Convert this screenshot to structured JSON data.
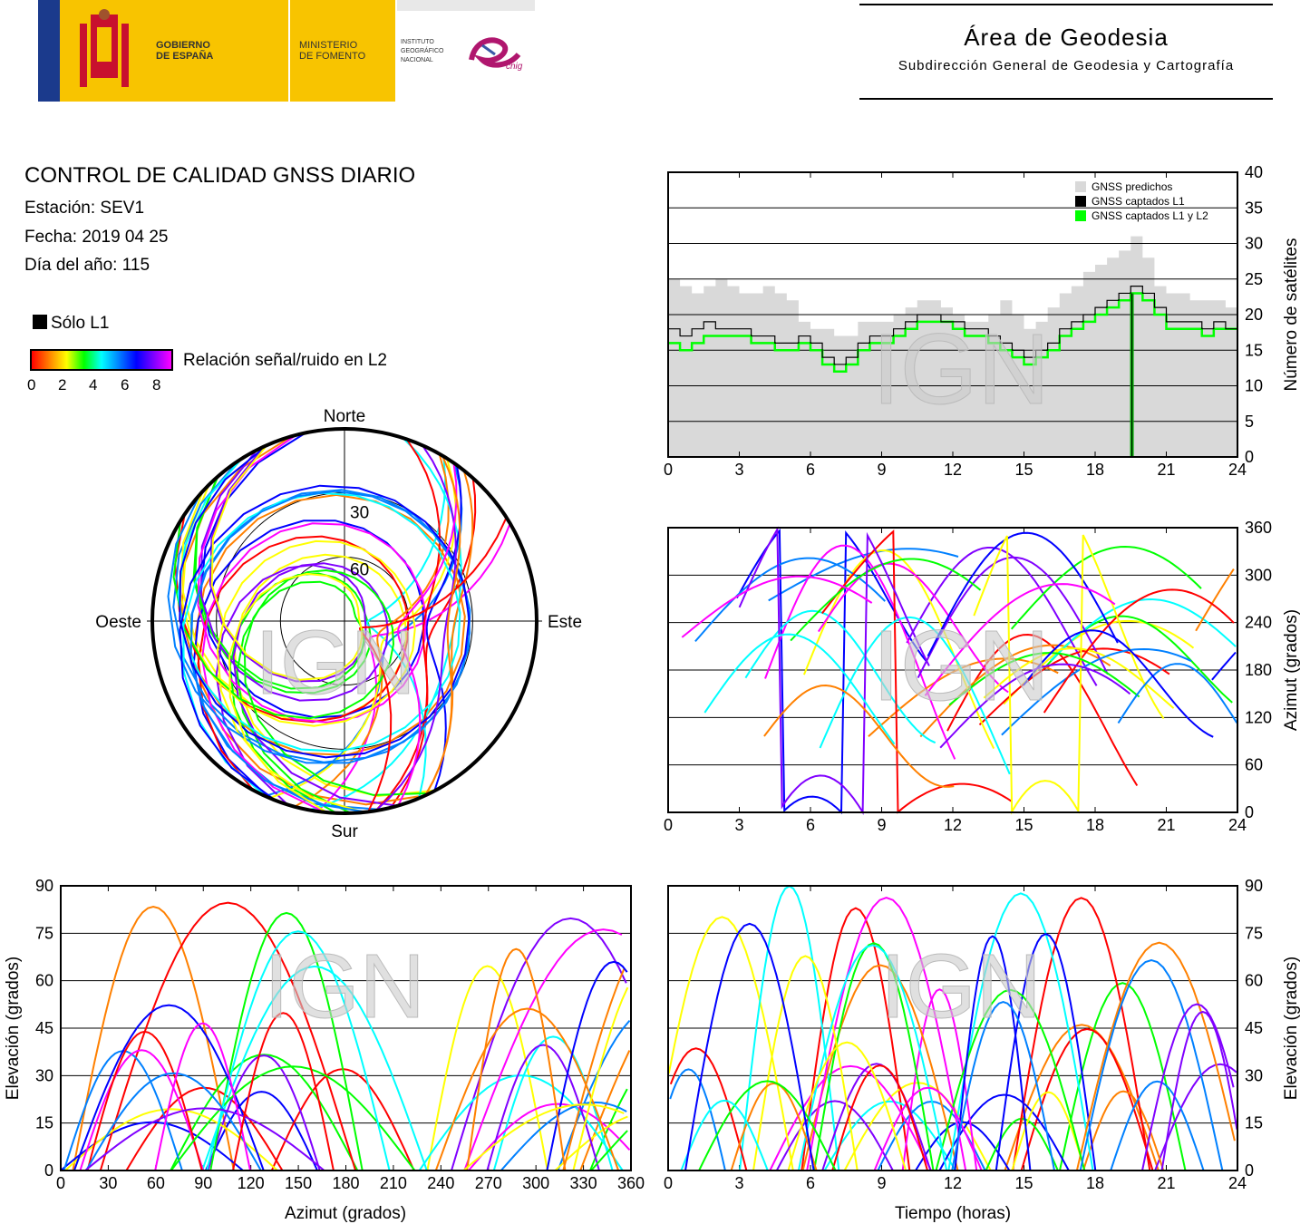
{
  "header": {
    "gov_text": [
      "GOBIERNO",
      "DE ESPAÑA"
    ],
    "ministry_text": [
      "MINISTERIO",
      "DE FOMENTO"
    ],
    "institute_text": [
      "INSTITUTO",
      "GEOGRÁFICO",
      "NACIONAL"
    ],
    "cnig_text": "cnig",
    "area_title": "Área de Geodesia",
    "area_subtitle": "Subdirección General de Geodesia y Cartografía"
  },
  "report": {
    "title": "CONTROL DE CALIDAD GNSS DIARIO",
    "station": "Estación: SEV1",
    "date": "Fecha: 2019 04 25",
    "doy": "Día del año: 115"
  },
  "legend": {
    "l1_only": "Sólo L1",
    "snr_label": "Relación señal/ruido en L2",
    "snr_ticks": [
      "0",
      "2",
      "4",
      "6",
      "8"
    ],
    "snr_colors": [
      "#ff0000",
      "#ff8000",
      "#ffff00",
      "#00ff00",
      "#00ffff",
      "#0080ff",
      "#0000ff",
      "#8000ff",
      "#ff00ff"
    ]
  },
  "watermark": "IGN",
  "chart_data": [
    {
      "type": "line",
      "id": "satellite-count",
      "ylabel": "Número de satélites",
      "xlim": [
        0,
        24
      ],
      "ylim": [
        0,
        40
      ],
      "xticks": [
        "0",
        "3",
        "6",
        "9",
        "12",
        "15",
        "18",
        "21",
        "24"
      ],
      "yticks": [
        "0",
        "5",
        "10",
        "15",
        "20",
        "25",
        "30",
        "35",
        "40"
      ],
      "grid": true,
      "legend_position": "top-right",
      "series": [
        {
          "name": "GNSS predichos",
          "color": "#d9d9d9",
          "x": [
            0,
            0.5,
            1,
            1.5,
            2,
            2.5,
            3,
            3.5,
            4,
            4.5,
            5,
            5.5,
            6,
            6.5,
            7,
            7.5,
            8,
            8.5,
            9,
            9.5,
            10,
            10.5,
            11,
            11.5,
            12,
            12.5,
            13,
            13.5,
            14,
            14.5,
            15,
            15.5,
            16,
            16.5,
            17,
            17.5,
            18,
            18.5,
            19,
            19.5,
            20,
            20.5,
            21,
            21.5,
            22,
            22.5,
            23,
            23.5,
            24
          ],
          "y": [
            25,
            24,
            23,
            24,
            25,
            24,
            23,
            23,
            24,
            23,
            22,
            19,
            18,
            18,
            17,
            17,
            19,
            19,
            19,
            20,
            21,
            22,
            22,
            21,
            20,
            19,
            19,
            20,
            22,
            20,
            18,
            19,
            21,
            23,
            24,
            26,
            27,
            28,
            29,
            31,
            28,
            24,
            23,
            23,
            22,
            22,
            22,
            21,
            21
          ]
        },
        {
          "name": "GNSS captados L1",
          "color": "#000000",
          "x": [
            0,
            0.5,
            1,
            1.5,
            2,
            2.5,
            3,
            3.5,
            4,
            4.5,
            5,
            5.5,
            6,
            6.5,
            7,
            7.5,
            8,
            8.5,
            9,
            9.5,
            10,
            10.5,
            11,
            11.5,
            12,
            12.5,
            13,
            13.5,
            14,
            14.5,
            15,
            15.5,
            16,
            16.5,
            17,
            17.5,
            18,
            18.5,
            19,
            19.5,
            20,
            20.5,
            21,
            21.5,
            22,
            22.5,
            23,
            23.5,
            24
          ],
          "y": [
            18,
            17,
            18,
            19,
            18,
            18,
            18,
            17,
            17,
            16,
            16,
            17,
            16,
            14,
            13,
            14,
            16,
            17,
            17,
            18,
            19,
            20,
            20,
            19,
            19,
            18,
            18,
            17,
            16,
            15,
            14,
            15,
            16,
            18,
            19,
            20,
            21,
            22,
            23,
            24,
            23,
            21,
            19,
            19,
            19,
            18,
            19,
            18,
            18
          ]
        },
        {
          "name": "GNSS captados L1 y L2",
          "color": "#00ff00",
          "x": [
            0,
            0.5,
            1,
            1.5,
            2,
            2.5,
            3,
            3.5,
            4,
            4.5,
            5,
            5.5,
            6,
            6.5,
            7,
            7.5,
            8,
            8.5,
            9,
            9.5,
            10,
            10.5,
            11,
            11.5,
            12,
            12.5,
            13,
            13.5,
            14,
            14.5,
            15,
            15.5,
            16,
            16.5,
            17,
            17.5,
            18,
            18.5,
            19,
            19.5,
            20,
            20.5,
            21,
            21.5,
            22,
            22.5,
            23,
            23.5,
            24
          ],
          "y": [
            16,
            15,
            16,
            17,
            17,
            17,
            17,
            16,
            16,
            15,
            15,
            16,
            15,
            13,
            12,
            13,
            15,
            16,
            16,
            17,
            18,
            19,
            19,
            19,
            18,
            17,
            17,
            16,
            15,
            14,
            13,
            14,
            15,
            17,
            18,
            19,
            20,
            21,
            22,
            23,
            22,
            20,
            18,
            18,
            18,
            17,
            18,
            18,
            18
          ]
        }
      ]
    },
    {
      "type": "scatter",
      "id": "azimuth-time",
      "ylabel": "Azimut (grados)",
      "xlim": [
        0,
        24
      ],
      "ylim": [
        0,
        360
      ],
      "xticks": [
        "0",
        "3",
        "6",
        "9",
        "12",
        "15",
        "18",
        "21",
        "24"
      ],
      "yticks": [
        "0",
        "60",
        "120",
        "180",
        "240",
        "300",
        "360"
      ],
      "grid": true
    },
    {
      "type": "scatter",
      "id": "skyplot",
      "title_labels": {
        "north": "Norte",
        "south": "Sur",
        "east": "Este",
        "west": "Oeste"
      },
      "ring_labels": [
        "30",
        "60"
      ]
    },
    {
      "type": "scatter",
      "id": "elevation-azimuth",
      "xlabel": "Azimut (grados)",
      "ylabel": "Elevación (grados)",
      "xlim": [
        0,
        360
      ],
      "ylim": [
        0,
        90
      ],
      "xticks": [
        "0",
        "30",
        "60",
        "90",
        "120",
        "150",
        "180",
        "210",
        "240",
        "270",
        "300",
        "330",
        "360"
      ],
      "yticks": [
        "0",
        "15",
        "30",
        "45",
        "60",
        "75",
        "90"
      ],
      "grid": true
    },
    {
      "type": "scatter",
      "id": "elevation-time",
      "xlabel": "Tiempo (horas)",
      "ylabel": "Elevación (grados)",
      "xlim": [
        0,
        24
      ],
      "ylim": [
        0,
        90
      ],
      "xticks": [
        "0",
        "3",
        "6",
        "9",
        "12",
        "15",
        "18",
        "21",
        "24"
      ],
      "yticks": [
        "0",
        "15",
        "30",
        "45",
        "60",
        "75",
        "90"
      ],
      "grid": true
    }
  ]
}
